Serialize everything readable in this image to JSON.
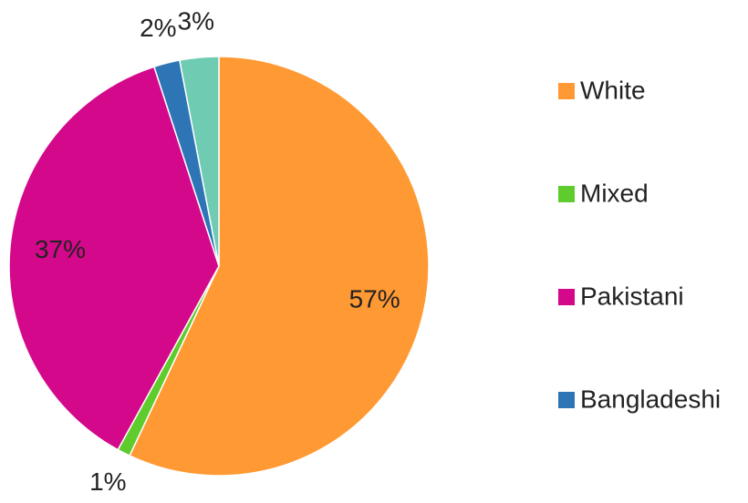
{
  "chart_data": {
    "type": "pie",
    "categories": [
      "White",
      "Mixed",
      "Pakistani",
      "Bangladeshi",
      null
    ],
    "values": [
      57,
      1,
      37,
      2,
      3
    ],
    "value_labels": [
      "57%",
      "1%",
      "37%",
      "2%",
      "3%"
    ],
    "colors": [
      "#ff9933",
      "#5fcc2e",
      "#d4088a",
      "#2e75b6",
      "#6fcbb2"
    ],
    "legend": "right"
  }
}
